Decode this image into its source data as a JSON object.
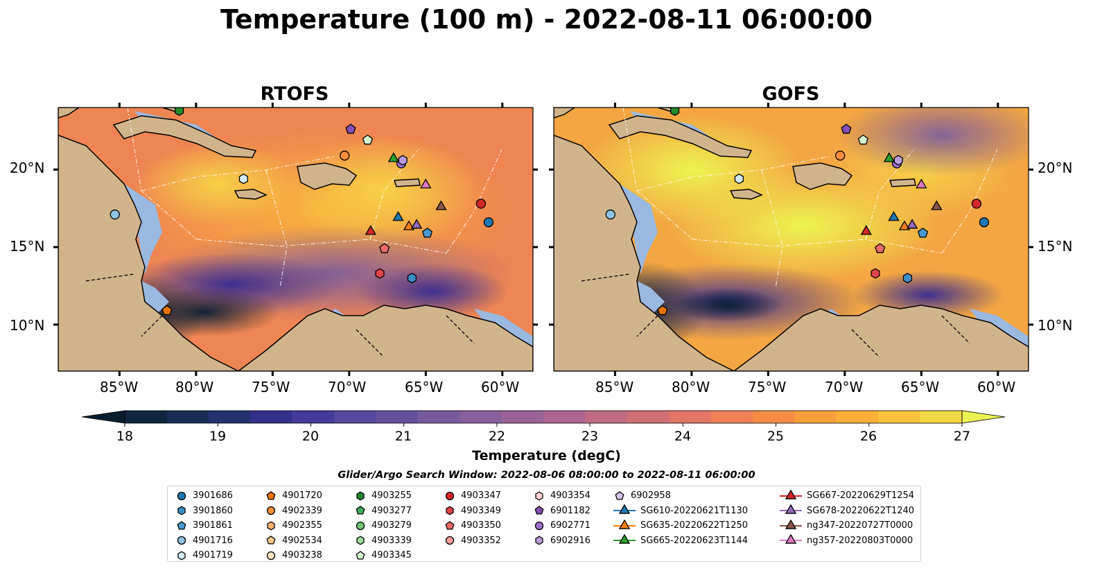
{
  "title": "Temperature (100 m) - 2022-08-11 06:00:00",
  "panels": [
    {
      "title": "RTOFS"
    },
    {
      "title": "GOFS"
    }
  ],
  "axes": {
    "x_ticks": [
      "85°W",
      "80°W",
      "75°W",
      "70°W",
      "65°W",
      "60°W"
    ],
    "y_ticks": [
      "20°N",
      "15°N",
      "10°N"
    ]
  },
  "colorbar": {
    "label": "Temperature (degC)",
    "ticks": [
      "18",
      "19",
      "20",
      "21",
      "22",
      "23",
      "24",
      "25",
      "26",
      "27"
    ],
    "colors": [
      "#081e2e",
      "#12253f",
      "#1a2b55",
      "#25306f",
      "#332f8c",
      "#433a9c",
      "#55489f",
      "#644f9d",
      "#755a9e",
      "#875f9b",
      "#9a6397",
      "#ac6690",
      "#bf6b84",
      "#d16f77",
      "#e17667",
      "#ee7f56",
      "#f58d47",
      "#f99e3c",
      "#fbaf38",
      "#f9c33c",
      "#f3d946",
      "#eaf252"
    ]
  },
  "search_window": "Glider/Argo Search Window: 2022-08-06 08:00:00 to 2022-08-11 06:00:00",
  "legend": [
    [
      {
        "label": "3901686",
        "color": "#1f77b4",
        "marker": "circle"
      },
      {
        "label": "3901860",
        "color": "#3e8fc7",
        "marker": "hexagon"
      },
      {
        "label": "3901861",
        "color": "#4a98d0",
        "marker": "pentagon"
      },
      {
        "label": "4901716",
        "color": "#8ec3e6",
        "marker": "circle"
      },
      {
        "label": "4901719",
        "color": "#d6ebf8",
        "marker": "hexagon"
      }
    ],
    [
      {
        "label": "4901720",
        "color": "#e8740c",
        "marker": "pentagon"
      },
      {
        "label": "4902339",
        "color": "#fb8d3d",
        "marker": "circle"
      },
      {
        "label": "4902355",
        "color": "#fdae6b",
        "marker": "hexagon"
      },
      {
        "label": "4902534",
        "color": "#fdc78e",
        "marker": "pentagon"
      },
      {
        "label": "4903238",
        "color": "#fee6c5",
        "marker": "circle"
      }
    ],
    [
      {
        "label": "4903255",
        "color": "#238b2c",
        "marker": "hexagon"
      },
      {
        "label": "4903277",
        "color": "#41ab5d",
        "marker": "pentagon"
      },
      {
        "label": "4903279",
        "color": "#74c476",
        "marker": "circle"
      },
      {
        "label": "4903339",
        "color": "#a1d99b",
        "marker": "hexagon"
      },
      {
        "label": "4903345",
        "color": "#d4f5cf",
        "marker": "pentagon"
      }
    ],
    [
      {
        "label": "4903347",
        "color": "#d62728",
        "marker": "circle"
      },
      {
        "label": "4903349",
        "color": "#e0444a",
        "marker": "hexagon"
      },
      {
        "label": "4903350",
        "color": "#ef6a6a",
        "marker": "pentagon"
      },
      {
        "label": "4903352",
        "color": "#f79c9c",
        "marker": "circle"
      }
    ],
    [
      {
        "label": "4903354",
        "color": "#fbd2d2",
        "marker": "hexagon"
      },
      {
        "label": "6901182",
        "color": "#8450b5",
        "marker": "pentagon"
      },
      {
        "label": "6902771",
        "color": "#9e6fcf",
        "marker": "circle"
      },
      {
        "label": "6902916",
        "color": "#b99adc",
        "marker": "hexagon"
      }
    ],
    [
      {
        "label": "6902958",
        "color": "#d9c5ee",
        "marker": "pentagon"
      },
      {
        "label": "SG610-20220621T1130",
        "color": "#1f77b4",
        "marker": "triangle"
      },
      {
        "label": "SG635-20220622T1250",
        "color": "#ff7f0e",
        "marker": "triangle"
      },
      {
        "label": "SG665-20220623T1144",
        "color": "#2ca02c",
        "marker": "triangle"
      }
    ],
    [
      {
        "label": "SG667-20220629T1254",
        "color": "#d62728",
        "marker": "triangle"
      },
      {
        "label": "SG678-20220622T1240",
        "color": "#9467bd",
        "marker": "triangle"
      },
      {
        "label": "ng347-20220727T0000",
        "color": "#8c564b",
        "marker": "triangle"
      },
      {
        "label": "ng357-20220803T0000",
        "color": "#e377c2",
        "marker": "triangle"
      }
    ]
  ],
  "map_colors": {
    "land": "#d2b48c",
    "shelf": "#9ab9e0"
  },
  "observations": [
    {
      "id": "3901686",
      "lon": -60.9,
      "lat": 16.6
    },
    {
      "id": "3901860",
      "lon": -65.9,
      "lat": 13.0
    },
    {
      "id": "3901861",
      "lon": -64.9,
      "lat": 15.9
    },
    {
      "id": "4901716",
      "lon": -85.3,
      "lat": 17.1
    },
    {
      "id": "4901719",
      "lon": -76.9,
      "lat": 19.4
    },
    {
      "id": "4901720",
      "lon": -81.9,
      "lat": 10.9
    },
    {
      "id": "4902339",
      "lon": -70.3,
      "lat": 20.9
    },
    {
      "id": "4903255",
      "lon": -81.1,
      "lat": 23.8
    },
    {
      "id": "4903345",
      "lon": -68.8,
      "lat": 21.9
    },
    {
      "id": "4903347",
      "lon": -61.4,
      "lat": 17.8
    },
    {
      "id": "4903349",
      "lon": -68.0,
      "lat": 13.3
    },
    {
      "id": "4903350",
      "lon": -67.7,
      "lat": 14.9
    },
    {
      "id": "6901182",
      "lon": -69.9,
      "lat": 22.6
    },
    {
      "id": "6902771",
      "lon": -66.6,
      "lat": 20.4
    },
    {
      "id": "6902916",
      "lon": -66.5,
      "lat": 20.6
    },
    {
      "id": "SG610-20220621T1130",
      "lon": -66.8,
      "lat": 16.9
    },
    {
      "id": "SG635-20220622T1250",
      "lon": -66.1,
      "lat": 16.3
    },
    {
      "id": "SG665-20220623T1144",
      "lon": -67.1,
      "lat": 20.7
    },
    {
      "id": "SG667-20220629T1254",
      "lon": -68.6,
      "lat": 16.0
    },
    {
      "id": "SG678-20220622T1240",
      "lon": -65.6,
      "lat": 16.4
    },
    {
      "id": "ng347-20220727T0000",
      "lon": -64.0,
      "lat": 17.6
    },
    {
      "id": "ng357-20220803T0000",
      "lon": -65.0,
      "lat": 19.0
    }
  ]
}
